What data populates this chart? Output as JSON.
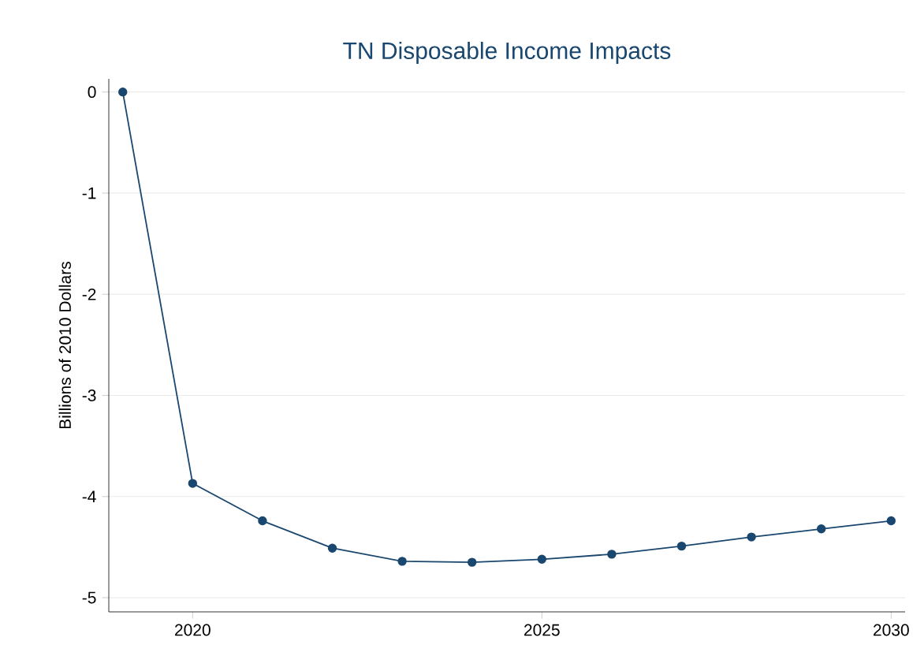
{
  "chart_data": {
    "type": "line",
    "title": "TN Disposable Income Impacts",
    "ylabel": "Billions of 2010 Dollars",
    "x": [
      2019,
      2020,
      2021,
      2022,
      2023,
      2024,
      2025,
      2026,
      2027,
      2028,
      2029,
      2030
    ],
    "series": [
      {
        "color": "#1a476f",
        "values": [
          0,
          -3.87,
          -4.24,
          -4.51,
          -4.64,
          -4.65,
          -4.62,
          -4.57,
          -4.49,
          -4.4,
          -4.32,
          -4.24
        ]
      }
    ],
    "xlim": [
      2018.8,
      2030.2
    ],
    "ylim": [
      -5.14,
      0.13
    ],
    "xticks": [
      2020,
      2025,
      2030
    ],
    "yticks": [
      -5,
      -4,
      -3,
      -2,
      -1,
      0
    ],
    "grid": "y",
    "marker": "circle",
    "line_style": "solid"
  }
}
